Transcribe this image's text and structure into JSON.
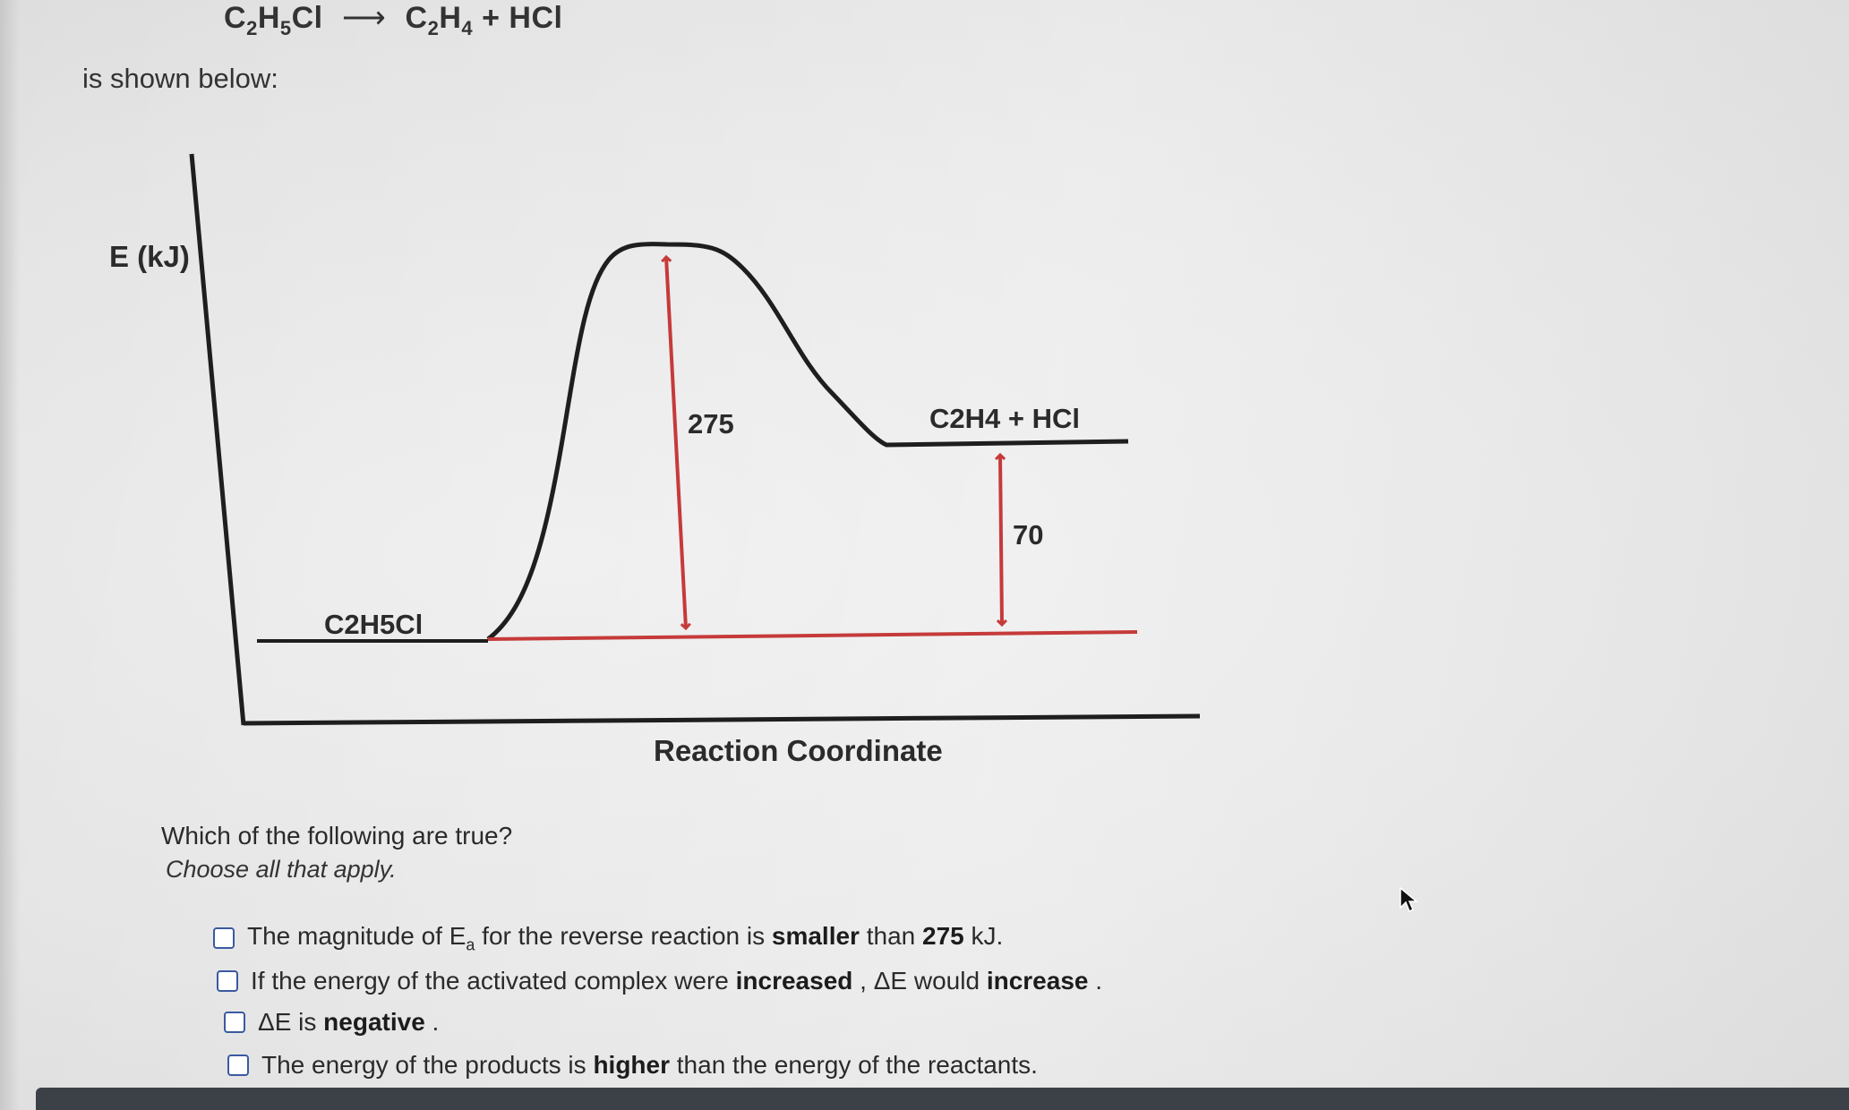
{
  "header": {
    "equation": {
      "reactant": {
        "c": "C",
        "c_sub": "2",
        "h": "H",
        "h_sub": "5",
        "rest": "Cl"
      },
      "product1": {
        "c": "C",
        "c_sub": "2",
        "h": "H",
        "h_sub": "4"
      },
      "plus": "+",
      "product2": "HCl"
    },
    "intro_text": "is shown below:"
  },
  "diagram": {
    "y_axis_label": "E (kJ)",
    "x_axis_label": "Reaction Coordinate",
    "reactant_label": "C2H5Cl",
    "product_label": "C2H4 + HCl",
    "activation_energy_label": "275",
    "delta_e_label": "70",
    "colors": {
      "curve": "#1e1e1e",
      "axis": "#1e1e1e",
      "annotation": "#c63a3a"
    }
  },
  "chart_data": {
    "type": "line",
    "title": "",
    "xlabel": "Reaction Coordinate",
    "ylabel": "E (kJ)",
    "levels": [
      {
        "label": "C2H5Cl",
        "energy": 0
      },
      {
        "label": "C2H4 + HCl",
        "energy": 70
      }
    ],
    "activation_energy": 275,
    "delta_e": 70
  },
  "question": {
    "prompt": "Which of the following are true?",
    "instruction": "Choose all that apply."
  },
  "options": [
    {
      "pre": "The magnitude of E",
      "sub": "a",
      "mid": " for the reverse reaction is ",
      "bold1": "smaller",
      "mid2": " than ",
      "bold2": "275",
      "post": " kJ."
    },
    {
      "pre": "If the energy of the activated complex were ",
      "bold1": "increased",
      "mid": " , ",
      "delta": "Δ",
      "mid2": "E would ",
      "bold2": "increase",
      "post": " ."
    },
    {
      "delta": "Δ",
      "pre": "E is ",
      "bold1": "negative",
      "post": " ."
    },
    {
      "pre": "The energy of the products is ",
      "bold1": "higher",
      "mid": " than the energy of the reactants."
    }
  ]
}
